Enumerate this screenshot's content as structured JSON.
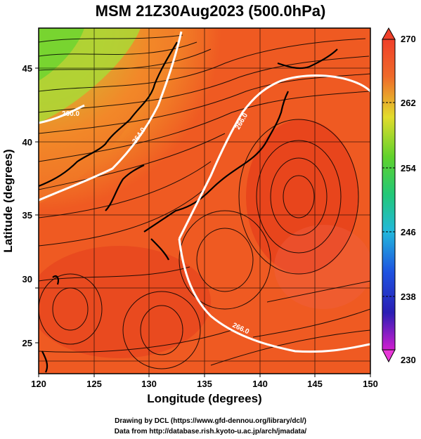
{
  "title": "MSM 21Z30Aug2023 (500.0hPa)",
  "x_axis": {
    "label": "Longitude (degrees)",
    "ticks": [
      "120",
      "125",
      "130",
      "135",
      "140",
      "145",
      "150"
    ]
  },
  "y_axis": {
    "label": "Latitude  (degrees)",
    "ticks": [
      "45",
      "40",
      "35",
      "30",
      "25"
    ]
  },
  "colorbar": {
    "ticks": [
      "270",
      "262",
      "254",
      "246",
      "238",
      "230"
    ],
    "min": 230,
    "max": 270
  },
  "contour_labels": [
    "260.0",
    "264.0",
    "266.0",
    "266.0"
  ],
  "credits": {
    "line1": "Drawing by DCL (https://www.gfd-dennou.org/library/dcl/)",
    "line2": "Data from http://database.rish.kyoto-u.ac.jp/arch/jmadata/"
  },
  "colors": {
    "warm": "#e8381c",
    "mid": "#f08a2a",
    "cool": "#9be03a",
    "cold": "#6fd12a"
  }
}
